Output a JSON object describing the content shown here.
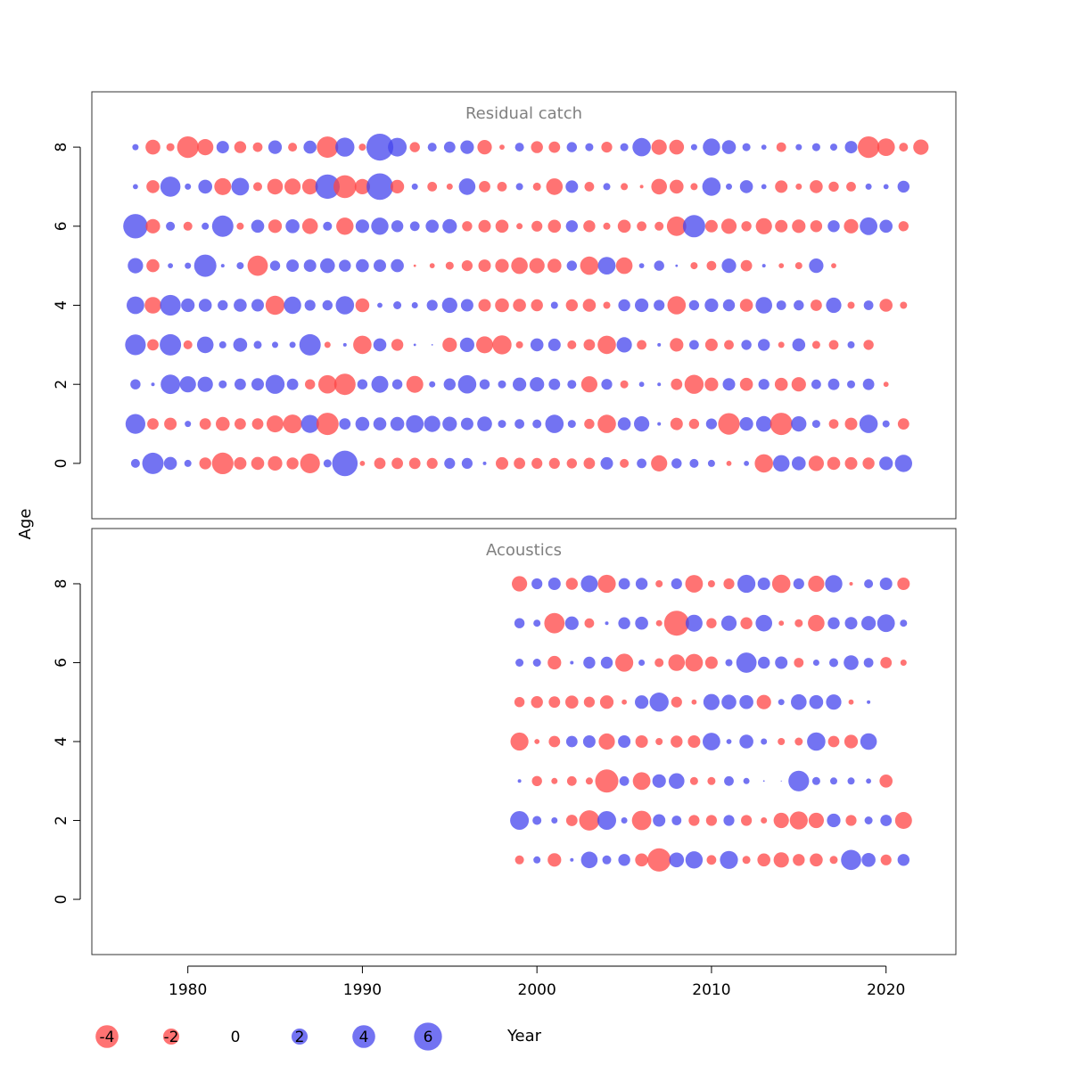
{
  "chart_data": {
    "type": "scatter",
    "subtype": "bubble residual plot",
    "xlabel": "Year",
    "ylabel": "Age",
    "xlim": [
      1974.5,
      2024
    ],
    "x_ticks": [
      "1980",
      "1990",
      "2000",
      "2010",
      "2020"
    ],
    "ylim": [
      -1.4,
      9.4
    ],
    "y_ticks": [
      "0",
      "2",
      "4",
      "6",
      "8"
    ],
    "grid": false,
    "colors": {
      "positive": "#4444ee",
      "negative": "#ff4444",
      "opacity": 0.75
    },
    "legend": {
      "placement": "bottom",
      "values": [
        -4,
        -2,
        0,
        2,
        4,
        6
      ],
      "labels": [
        "-4",
        "-2",
        "0",
        "2",
        "4",
        "6"
      ]
    },
    "panels": [
      {
        "title": "Residual catch",
        "years": [
          1977,
          2021
        ],
        "ages": [
          0,
          1,
          2,
          3,
          4,
          5,
          6,
          7,
          8
        ],
        "residuals": [
          [
            0.6,
            3.5,
            1.3,
            0.4,
            -1.1,
            -3.6,
            -1.2,
            -1.3,
            -1.6,
            -1.1,
            -3.0,
            0.5,
            5.0,
            -0.2,
            -1.0,
            -1.0,
            -1.0,
            -0.9,
            0.9,
            0.9,
            0.1,
            -1.2,
            -1.0,
            -0.9,
            -0.9,
            -0.8,
            -1.0,
            1.2,
            -0.6,
            0.7,
            -2.0,
            0.8,
            0.6,
            0.4,
            -0.2,
            0.2,
            -2.6,
            2.1,
            1.5,
            -1.8,
            -1.3,
            -1.2,
            -1.1,
            1.4,
            2.3
          ],
          [
            3.0,
            -1.0,
            -1.2,
            0.3,
            -1.0,
            -1.5,
            -1.0,
            -1.0,
            -2.2,
            -2.7,
            2.5,
            -3.8,
            1.0,
            1.5,
            1.3,
            1.5,
            2.4,
            2.0,
            1.6,
            1.2,
            1.7,
            0.5,
            0.7,
            0.6,
            2.6,
            0.5,
            -0.8,
            -2.6,
            1.3,
            1.8,
            0.1,
            -1.2,
            -0.8,
            0.9,
            -3.6,
            1.4,
            1.9,
            -3.8,
            1.8,
            0.5,
            -0.7,
            -1.2,
            2.6,
            0.4,
            -1.0
          ],
          [
            0.8,
            0.1,
            2.9,
            2.0,
            1.8,
            0.5,
            1.0,
            1.2,
            2.8,
            1.0,
            -0.8,
            -2.6,
            -3.5,
            0.8,
            2.2,
            0.8,
            -2.2,
            0.3,
            1.1,
            2.6,
            0.8,
            0.5,
            1.4,
            1.6,
            1.0,
            0.6,
            -2.0,
            0.9,
            -0.5,
            0.2,
            0.1,
            -1.0,
            -2.8,
            -1.4,
            1.2,
            -1.3,
            0.9,
            -1.3,
            -1.6,
            0.7,
            1.0,
            0.5,
            1.0,
            -0.2
          ],
          [
            3.3,
            -1.0,
            3.5,
            -0.6,
            2.1,
            0.4,
            1.5,
            0.5,
            0.3,
            0.3,
            3.5,
            -0.3,
            0.1,
            -2.6,
            1.3,
            -1.1,
            0.05,
            0.02,
            -1.6,
            1.6,
            -2.2,
            -2.8,
            -0.4,
            1.3,
            1.2,
            -0.6,
            -1.0,
            -2.6,
            1.8,
            -0.7,
            0.1,
            -1.4,
            0.7,
            -1.2,
            -0.7,
            0.8,
            1.1,
            -0.3,
            1.3,
            -0.5,
            -0.7,
            0.4,
            -0.8
          ],
          [
            2.4,
            -2.1,
            3.3,
            1.4,
            1.3,
            0.8,
            1.3,
            1.2,
            -2.8,
            2.3,
            0.9,
            0.8,
            2.6,
            -1.5,
            0.2,
            0.5,
            0.3,
            0.9,
            1.8,
            1.2,
            -1.2,
            -1.5,
            -1.3,
            -1.1,
            0.4,
            -1.1,
            -1.3,
            -0.4,
            1.1,
            1.4,
            0.9,
            -2.6,
            0.8,
            1.4,
            1.1,
            -1.3,
            2.1,
            0.7,
            0.8,
            -1.0,
            1.8,
            -0.4,
            0.7,
            -1.3,
            -0.4
          ],
          [
            1.8,
            -1.3,
            0.2,
            0.3,
            3.8,
            0.1,
            0.4,
            -3.2,
            0.8,
            1.2,
            1.2,
            1.7,
            1.1,
            1.3,
            1.2,
            1.3,
            -0.05,
            -0.2,
            -0.5,
            -0.9,
            -1.2,
            -1.4,
            -2.1,
            -1.8,
            -1.5,
            0.8,
            -2.6,
            2.4,
            -2.1,
            0.2,
            0.8,
            0.05,
            -0.4,
            -0.7,
            1.6,
            -1.0,
            0.1,
            -0.2,
            -0.4,
            1.6,
            -0.2
          ],
          [
            4.6,
            -1.6,
            0.6,
            -0.6,
            0.4,
            3.5,
            -0.4,
            1.3,
            -1.4,
            1.5,
            -1.9,
            0.6,
            -2.3,
            1.4,
            2.3,
            1.1,
            0.7,
            1.3,
            1.6,
            -0.8,
            -1.2,
            -1.3,
            -0.3,
            -0.9,
            -1.3,
            1.1,
            -1.1,
            -0.4,
            -1.3,
            -0.7,
            -0.6,
            -2.9,
            3.8,
            -1.2,
            -1.8,
            -0.8,
            -2.0,
            -1.2,
            -1.4,
            -1.1,
            1.1,
            -1.6,
            2.4,
            1.3,
            -0.8
          ],
          [
            0.2,
            -1.3,
            3.1,
            0.3,
            1.5,
            -2.2,
            2.4,
            -0.6,
            -1.9,
            -2.0,
            -1.9,
            4.6,
            -4.0,
            -1.8,
            5.4,
            -1.4,
            0.3,
            -0.7,
            -0.3,
            2.1,
            -1.0,
            -0.7,
            0.4,
            -0.5,
            -2.1,
            1.2,
            -0.7,
            0.4,
            -0.4,
            -0.1,
            -1.9,
            -1.5,
            -0.4,
            2.6,
            0.3,
            1.3,
            0.2,
            -1.2,
            -0.3,
            -1.3,
            -0.8,
            -0.7,
            0.3,
            0.2,
            1.1
          ],
          [
            0.3,
            -1.7,
            -0.5,
            -3.6,
            -2.0,
            1.2,
            -1.1,
            -0.7,
            1.4,
            -0.6,
            1.3,
            -3.5,
            2.8,
            -0.4,
            5.6,
            2.7,
            -0.8,
            0.6,
            1.0,
            1.4,
            -1.6,
            -0.2,
            0.6,
            -1.1,
            -1.0,
            0.8,
            0.5,
            -0.9,
            0.5,
            2.6,
            -1.8,
            -1.7,
            0.3,
            2.3,
            1.5,
            0.5,
            0.2,
            -0.7,
            0.3,
            0.5,
            0.4,
            1.2,
            -3.6,
            -2.4,
            -0.6,
            -1.8
          ]
        ]
      },
      {
        "title": "Acoustics",
        "years": [
          1999,
          2021
        ],
        "ages": [
          1,
          2,
          3,
          4,
          5,
          6,
          7,
          8
        ],
        "residuals": [
          [
            -0.6,
            0.4,
            -1.4,
            0.1,
            2.1,
            0.6,
            1.1,
            -1.3,
            -4.2,
            1.7,
            2.3,
            -0.7,
            2.5,
            -0.5,
            -1.3,
            -1.8,
            -1.1,
            -1.3,
            -0.5,
            3.1,
            1.5,
            -0.9,
            1.1
          ],
          [
            2.7,
            0.6,
            0.3,
            -1.0,
            -3.2,
            2.7,
            0.3,
            -2.9,
            1.2,
            0.7,
            -0.9,
            -0.9,
            0.9,
            -0.9,
            -0.3,
            -1.8,
            -2.5,
            -1.8,
            1.4,
            -0.9,
            0.5,
            1.0,
            -2.2
          ],
          [
            0.1,
            -0.8,
            -0.3,
            -0.7,
            -0.4,
            -4.1,
            0.7,
            -2.4,
            1.4,
            1.9,
            -0.5,
            -0.5,
            0.7,
            0.3,
            0.02,
            0.01,
            3.3,
            0.5,
            0.4,
            0.4,
            0.2,
            -1.3
          ],
          [
            -2.5,
            -0.2,
            -1.0,
            1.0,
            1.2,
            -2.0,
            1.2,
            -1.2,
            -0.4,
            -1.1,
            -1.2,
            2.4,
            0.2,
            1.5,
            0.3,
            -0.4,
            -0.5,
            2.6,
            -1.0,
            -1.4,
            2.1
          ],
          [
            -0.8,
            -1.1,
            -1.0,
            -1.3,
            -0.9,
            -1.4,
            -0.2,
            1.4,
            2.8,
            -0.9,
            -0.2,
            2.0,
            1.7,
            1.5,
            -1.6,
            0.3,
            1.9,
            1.5,
            1.8,
            -0.2,
            0.1
          ],
          [
            0.5,
            0.5,
            -1.4,
            0.1,
            1.1,
            1.1,
            -2.5,
            0.3,
            -0.6,
            -2.1,
            -2.4,
            -1.2,
            0.4,
            3.2,
            1.1,
            1.2,
            -0.7,
            0.3,
            0.6,
            1.7,
            0.7,
            -1.0,
            -0.3
          ],
          [
            0.8,
            0.4,
            -3.2,
            1.4,
            -0.7,
            0.1,
            1.1,
            1.3,
            -0.3,
            -4.8,
            2.2,
            -0.8,
            1.8,
            -1.1,
            2.1,
            -0.2,
            -0.5,
            -2.1,
            1.1,
            1.2,
            1.6,
            2.4,
            0.4
          ],
          [
            -1.8,
            0.9,
            1.2,
            -1.1,
            2.2,
            -2.5,
            1.0,
            1.1,
            -0.4,
            0.9,
            -2.4,
            -0.4,
            -0.9,
            2.5,
            1.2,
            -2.6,
            0.9,
            -2.0,
            2.3,
            -0.1,
            0.6,
            1.2,
            -1.2
          ]
        ]
      }
    ]
  }
}
